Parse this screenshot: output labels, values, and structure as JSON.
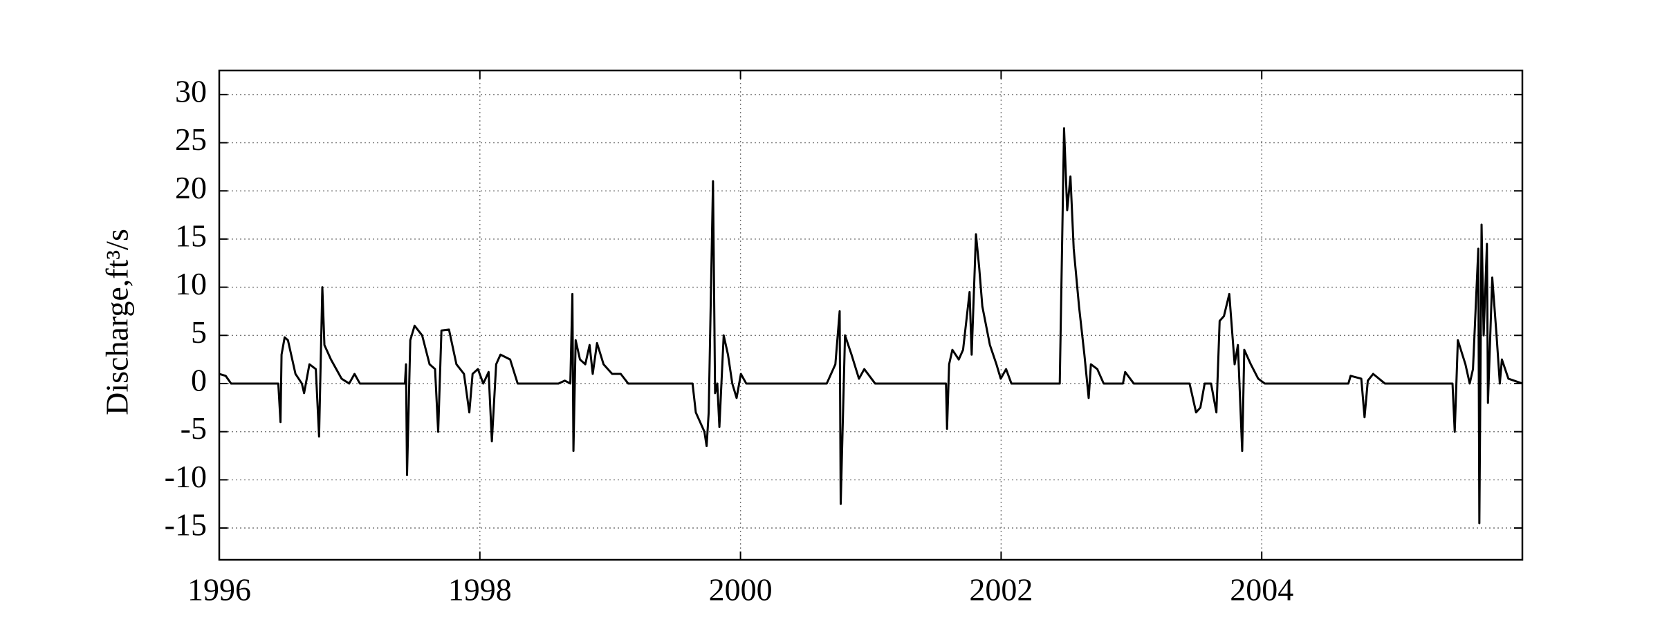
{
  "chart_data": {
    "type": "line",
    "ylabel": "Discharge,ft³/s",
    "color": "#000000",
    "grid": true,
    "xlim": [
      1996,
      2006
    ],
    "xticks": [
      1996,
      1998,
      2000,
      2002,
      2004
    ],
    "ylim": [
      -18.3,
      32.5
    ],
    "yticks": [
      -15,
      -10,
      -5,
      0,
      5,
      10,
      15,
      20,
      25,
      30
    ],
    "x": [
      1996.0,
      1996.049,
      1996.091,
      1996.453,
      1996.47,
      1996.478,
      1996.502,
      1996.527,
      1996.585,
      1996.634,
      1996.651,
      1996.692,
      1996.741,
      1996.766,
      1996.791,
      1996.807,
      1996.857,
      1996.939,
      1996.997,
      1997.038,
      1997.079,
      1997.425,
      1997.433,
      1997.441,
      1997.466,
      1997.499,
      1997.557,
      1997.614,
      1997.656,
      1997.68,
      1997.705,
      1997.763,
      1997.82,
      1997.878,
      1997.919,
      1997.944,
      1997.985,
      1998.026,
      1998.067,
      1998.092,
      1998.125,
      1998.158,
      1998.232,
      1998.29,
      1998.603,
      1998.652,
      1998.694,
      1998.71,
      1998.718,
      1998.735,
      1998.768,
      1998.809,
      1998.842,
      1998.866,
      1998.899,
      1998.949,
      1999.015,
      1999.081,
      1999.138,
      1999.632,
      1999.657,
      1999.69,
      1999.723,
      1999.74,
      1999.756,
      1999.789,
      1999.805,
      1999.822,
      1999.838,
      1999.871,
      1999.904,
      1999.937,
      1999.97,
      2000.003,
      2000.044,
      2000.662,
      2000.728,
      2000.761,
      2000.769,
      2000.802,
      2000.852,
      2000.909,
      2000.95,
      2001.033,
      2001.577,
      2001.585,
      2001.601,
      2001.626,
      2001.675,
      2001.708,
      2001.758,
      2001.774,
      2001.807,
      2001.832,
      2001.856,
      2001.914,
      2001.964,
      2001.997,
      2002.038,
      2002.079,
      2002.45,
      2002.483,
      2002.507,
      2002.532,
      2002.557,
      2002.598,
      2002.639,
      2002.672,
      2002.689,
      2002.738,
      2002.787,
      2002.935,
      2002.952,
      2003.018,
      2003.446,
      2003.463,
      2003.496,
      2003.529,
      2003.562,
      2003.611,
      2003.652,
      2003.677,
      2003.71,
      2003.751,
      2003.792,
      2003.817,
      2003.85,
      2003.866,
      2003.916,
      2003.973,
      2004.023,
      2004.665,
      2004.682,
      2004.764,
      2004.789,
      2004.814,
      2004.855,
      2004.945,
      2005.464,
      2005.481,
      2005.505,
      2005.563,
      2005.596,
      2005.621,
      2005.662,
      2005.67,
      2005.687,
      2005.703,
      2005.728,
      2005.736,
      2005.769,
      2005.802,
      2005.827,
      2005.843,
      2005.893,
      2006.0
    ],
    "values": [
      1.0,
      0.8,
      0,
      0,
      -4,
      3,
      4.8,
      4.5,
      1,
      0,
      -1,
      2,
      1.5,
      -5.5,
      10,
      4,
      2.5,
      0.5,
      0,
      1,
      0,
      0,
      2,
      -9.5,
      4.5,
      6,
      5,
      2,
      1.5,
      -5,
      5.5,
      5.6,
      2,
      1,
      -3,
      1,
      1.5,
      0,
      1.2,
      -6,
      2,
      3,
      2.5,
      0,
      0,
      0.3,
      0,
      9.3,
      -7,
      4.5,
      2.5,
      2,
      4,
      1,
      4.2,
      2,
      1,
      1,
      0,
      0,
      -3,
      -4,
      -5,
      -6.5,
      -3,
      21,
      -1,
      0,
      -4.5,
      5,
      3,
      0,
      -1.5,
      1,
      0,
      0,
      2,
      7.5,
      -12.5,
      5,
      3,
      0.5,
      1.5,
      0,
      0,
      -4.7,
      2,
      3.5,
      2.5,
      3.5,
      9.5,
      3,
      15.5,
      12,
      8,
      4,
      2,
      0.5,
      1.5,
      0,
      0,
      26.5,
      18,
      21.5,
      14,
      8,
      3,
      -1.5,
      2,
      1.5,
      0,
      0,
      1.2,
      0,
      0,
      -1,
      -3,
      -2.5,
      0,
      0,
      -3,
      6.5,
      7,
      9.3,
      2,
      4,
      -7,
      3.5,
      2,
      0.5,
      0,
      0,
      0.8,
      0.5,
      -3.5,
      0.3,
      1,
      0,
      0,
      -5,
      4.5,
      2,
      0,
      1.5,
      14,
      -14.5,
      16.5,
      5,
      14.5,
      -2,
      11,
      5,
      0,
      2.5,
      0.5,
      0
    ]
  }
}
